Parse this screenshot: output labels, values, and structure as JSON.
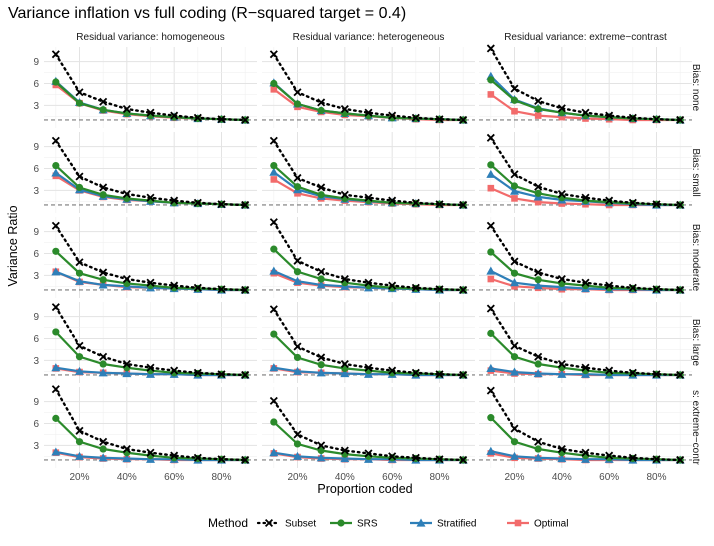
{
  "chart_data": {
    "type": "line",
    "title": "Variance inflation vs full coding (R−squared target = 0.4)",
    "xlabel": "Proportion coded",
    "ylabel": "Variance Ratio",
    "x": [
      0.1,
      0.2,
      0.3,
      0.4,
      0.5,
      0.6,
      0.7,
      0.8,
      0.9
    ],
    "x_ticks": [
      0.2,
      0.4,
      0.6,
      0.8
    ],
    "x_tick_labels": [
      "20%",
      "40%",
      "60%",
      "80%"
    ],
    "xlim": [
      0.05,
      0.95
    ],
    "y_ticks": [
      3,
      6,
      9
    ],
    "y_tick_labels": [
      "3",
      "6",
      "9"
    ],
    "ylim": [
      -0.1,
      11
    ],
    "reference_line": 1,
    "columns": [
      "Residual variance: homogeneous",
      "Residual variance: heterogeneous",
      "Residual variance: extreme−contrast"
    ],
    "rows": [
      "Bias: none",
      "Bias: small",
      "Bias: moderate",
      "Bias: large",
      "s: extreme−contr"
    ],
    "legend": {
      "title": "Method",
      "position": "bottom",
      "items": [
        {
          "name": "Subset",
          "color": "#000000",
          "marker": "x",
          "line": "dotted"
        },
        {
          "name": "SRS",
          "color": "#2b8a2b",
          "marker": "circle",
          "line": "solid"
        },
        {
          "name": "Stratified",
          "color": "#2e7fb8",
          "marker": "triangle",
          "line": "solid"
        },
        {
          "name": "Optimal",
          "color": "#f26b6b",
          "marker": "square",
          "line": "solid"
        }
      ]
    },
    "panels": [
      {
        "row": 0,
        "col": 0,
        "series": {
          "Subset": [
            10,
            4.8,
            3.5,
            2.5,
            2.0,
            1.6,
            1.3,
            1.1,
            1.0
          ],
          "SRS": [
            6.2,
            3.3,
            2.4,
            1.9,
            1.6,
            1.4,
            1.2,
            1.1,
            1.0
          ],
          "Stratified": [
            6.3,
            3.4,
            2.4,
            1.9,
            1.6,
            1.4,
            1.2,
            1.1,
            1.0
          ],
          "Optimal": [
            5.8,
            3.3,
            2.3,
            1.8,
            1.5,
            1.3,
            1.2,
            1.1,
            1.0
          ]
        }
      },
      {
        "row": 0,
        "col": 1,
        "series": {
          "Subset": [
            10,
            4.8,
            3.4,
            2.5,
            2.0,
            1.6,
            1.3,
            1.1,
            1.0
          ],
          "SRS": [
            6.0,
            3.2,
            2.3,
            1.9,
            1.6,
            1.3,
            1.2,
            1.1,
            1.0
          ],
          "Stratified": [
            6.1,
            3.2,
            2.3,
            1.9,
            1.6,
            1.3,
            1.2,
            1.1,
            1.0
          ],
          "Optimal": [
            5.2,
            2.8,
            2.1,
            1.7,
            1.5,
            1.3,
            1.1,
            1.0,
            1.0
          ]
        }
      },
      {
        "row": 0,
        "col": 2,
        "series": {
          "Subset": [
            10.8,
            5.3,
            3.6,
            2.6,
            2.0,
            1.6,
            1.3,
            1.1,
            1.0
          ],
          "SRS": [
            6.5,
            3.7,
            2.5,
            2.0,
            1.6,
            1.4,
            1.2,
            1.1,
            1.0
          ],
          "Stratified": [
            7.0,
            3.8,
            2.6,
            2.0,
            1.6,
            1.4,
            1.2,
            1.1,
            1.0
          ],
          "Optimal": [
            4.5,
            2.2,
            1.6,
            1.4,
            1.2,
            1.1,
            1.0,
            1.0,
            1.0
          ]
        }
      },
      {
        "row": 1,
        "col": 0,
        "series": {
          "Subset": [
            9.8,
            4.9,
            3.4,
            2.5,
            2.0,
            1.6,
            1.3,
            1.1,
            1.0
          ],
          "SRS": [
            6.4,
            3.4,
            2.4,
            1.9,
            1.6,
            1.3,
            1.2,
            1.1,
            1.0
          ],
          "Stratified": [
            5.4,
            3.1,
            2.2,
            1.8,
            1.5,
            1.3,
            1.2,
            1.1,
            1.0
          ],
          "Optimal": [
            5.0,
            3.0,
            2.1,
            1.7,
            1.5,
            1.3,
            1.2,
            1.1,
            1.0
          ]
        }
      },
      {
        "row": 1,
        "col": 1,
        "series": {
          "Subset": [
            9.8,
            4.7,
            3.4,
            2.4,
            2.0,
            1.6,
            1.3,
            1.1,
            1.0
          ],
          "SRS": [
            6.4,
            3.5,
            2.4,
            1.9,
            1.6,
            1.3,
            1.2,
            1.1,
            1.0
          ],
          "Stratified": [
            5.5,
            3.1,
            2.2,
            1.8,
            1.5,
            1.3,
            1.2,
            1.1,
            1.0
          ],
          "Optimal": [
            4.5,
            2.6,
            1.9,
            1.6,
            1.4,
            1.2,
            1.1,
            1.0,
            1.0
          ]
        }
      },
      {
        "row": 1,
        "col": 2,
        "series": {
          "Subset": [
            10.2,
            5.2,
            3.5,
            2.5,
            2.0,
            1.6,
            1.3,
            1.1,
            1.0
          ],
          "SRS": [
            6.5,
            3.6,
            2.6,
            2.0,
            1.6,
            1.4,
            1.2,
            1.1,
            1.0
          ],
          "Stratified": [
            5.2,
            2.9,
            2.1,
            1.7,
            1.5,
            1.3,
            1.1,
            1.0,
            1.0
          ],
          "Optimal": [
            3.3,
            1.9,
            1.4,
            1.2,
            1.1,
            1.0,
            1.0,
            1.0,
            1.0
          ]
        }
      },
      {
        "row": 2,
        "col": 0,
        "series": {
          "Subset": [
            9.8,
            4.8,
            3.4,
            2.5,
            2.0,
            1.6,
            1.3,
            1.1,
            1.0
          ],
          "SRS": [
            6.3,
            3.3,
            2.4,
            1.9,
            1.6,
            1.3,
            1.2,
            1.1,
            1.0
          ],
          "Stratified": [
            3.5,
            2.2,
            1.7,
            1.5,
            1.3,
            1.2,
            1.1,
            1.0,
            1.0
          ],
          "Optimal": [
            3.5,
            2.1,
            1.7,
            1.4,
            1.3,
            1.2,
            1.1,
            1.0,
            1.0
          ]
        }
      },
      {
        "row": 2,
        "col": 1,
        "series": {
          "Subset": [
            10.3,
            5.0,
            3.5,
            2.5,
            2.0,
            1.6,
            1.3,
            1.1,
            1.0
          ],
          "SRS": [
            6.6,
            3.5,
            2.5,
            2.0,
            1.6,
            1.3,
            1.2,
            1.1,
            1.0
          ],
          "Stratified": [
            3.6,
            2.2,
            1.7,
            1.5,
            1.3,
            1.2,
            1.1,
            1.0,
            1.0
          ],
          "Optimal": [
            3.3,
            2.0,
            1.6,
            1.4,
            1.3,
            1.2,
            1.1,
            1.0,
            1.0
          ]
        }
      },
      {
        "row": 2,
        "col": 2,
        "series": {
          "Subset": [
            9.8,
            4.9,
            3.4,
            2.5,
            2.0,
            1.6,
            1.3,
            1.1,
            1.0
          ],
          "SRS": [
            6.2,
            3.3,
            2.4,
            1.9,
            1.6,
            1.3,
            1.2,
            1.1,
            1.0
          ],
          "Stratified": [
            3.6,
            2.0,
            1.6,
            1.4,
            1.2,
            1.1,
            1.1,
            1.0,
            1.0
          ],
          "Optimal": [
            2.5,
            1.5,
            1.3,
            1.1,
            1.1,
            1.0,
            1.0,
            1.0,
            1.0
          ]
        }
      },
      {
        "row": 3,
        "col": 0,
        "series": {
          "Subset": [
            10.3,
            5.0,
            3.5,
            2.5,
            2.0,
            1.6,
            1.3,
            1.1,
            1.0
          ],
          "SRS": [
            6.9,
            3.5,
            2.5,
            2.0,
            1.6,
            1.3,
            1.2,
            1.1,
            1.0
          ],
          "Stratified": [
            2.0,
            1.5,
            1.3,
            1.2,
            1.1,
            1.1,
            1.0,
            1.0,
            1.0
          ],
          "Optimal": [
            1.9,
            1.4,
            1.3,
            1.2,
            1.1,
            1.1,
            1.0,
            1.0,
            1.0
          ]
        }
      },
      {
        "row": 3,
        "col": 1,
        "series": {
          "Subset": [
            10,
            4.9,
            3.4,
            2.5,
            2.0,
            1.6,
            1.3,
            1.1,
            1.0
          ],
          "SRS": [
            6.6,
            3.4,
            2.4,
            1.9,
            1.6,
            1.3,
            1.2,
            1.1,
            1.0
          ],
          "Stratified": [
            2.0,
            1.5,
            1.3,
            1.2,
            1.1,
            1.1,
            1.0,
            1.0,
            1.0
          ],
          "Optimal": [
            1.9,
            1.4,
            1.3,
            1.2,
            1.1,
            1.1,
            1.0,
            1.0,
            1.0
          ]
        }
      },
      {
        "row": 3,
        "col": 2,
        "series": {
          "Subset": [
            10.1,
            5.0,
            3.5,
            2.5,
            2.0,
            1.6,
            1.3,
            1.1,
            1.0
          ],
          "SRS": [
            6.7,
            3.5,
            2.5,
            2.0,
            1.6,
            1.3,
            1.2,
            1.1,
            1.0
          ],
          "Stratified": [
            1.9,
            1.4,
            1.2,
            1.1,
            1.1,
            1.0,
            1.0,
            1.0,
            1.0
          ],
          "Optimal": [
            1.6,
            1.2,
            1.1,
            1.1,
            1.0,
            1.0,
            1.0,
            1.0,
            1.0
          ]
        }
      },
      {
        "row": 4,
        "col": 0,
        "series": {
          "Subset": [
            10.7,
            5.0,
            3.5,
            2.5,
            2.0,
            1.6,
            1.3,
            1.1,
            1.0
          ],
          "SRS": [
            6.7,
            3.5,
            2.5,
            2.0,
            1.6,
            1.3,
            1.2,
            1.1,
            1.0
          ],
          "Stratified": [
            2.1,
            1.5,
            1.3,
            1.2,
            1.1,
            1.1,
            1.0,
            1.0,
            1.0
          ],
          "Optimal": [
            2.0,
            1.4,
            1.2,
            1.1,
            1.1,
            1.0,
            1.0,
            1.0,
            1.0
          ]
        }
      },
      {
        "row": 4,
        "col": 1,
        "series": {
          "Subset": [
            9.1,
            4.5,
            3.0,
            2.3,
            1.9,
            1.5,
            1.3,
            1.1,
            1.0
          ],
          "SRS": [
            6.2,
            3.2,
            2.3,
            1.8,
            1.5,
            1.3,
            1.2,
            1.1,
            1.0
          ],
          "Stratified": [
            2.0,
            1.5,
            1.3,
            1.2,
            1.1,
            1.1,
            1.0,
            1.0,
            1.0
          ],
          "Optimal": [
            1.9,
            1.4,
            1.2,
            1.1,
            1.1,
            1.0,
            1.0,
            1.0,
            1.0
          ]
        }
      },
      {
        "row": 4,
        "col": 2,
        "series": {
          "Subset": [
            10.5,
            5.3,
            3.5,
            2.5,
            2.0,
            1.6,
            1.3,
            1.1,
            1.0
          ],
          "SRS": [
            6.8,
            3.5,
            2.5,
            2.0,
            1.6,
            1.3,
            1.2,
            1.1,
            1.0
          ],
          "Stratified": [
            2.2,
            1.5,
            1.3,
            1.2,
            1.1,
            1.1,
            1.0,
            1.0,
            1.0
          ],
          "Optimal": [
            1.9,
            1.3,
            1.2,
            1.1,
            1.0,
            1.0,
            1.0,
            1.0,
            1.0
          ]
        }
      }
    ]
  }
}
